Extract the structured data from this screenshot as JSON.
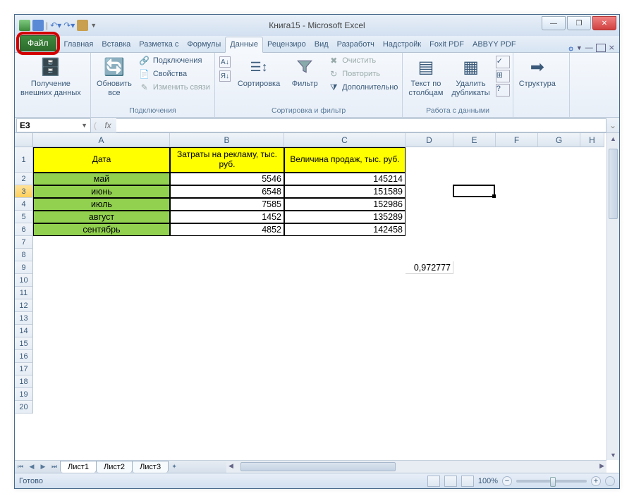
{
  "title": "Книга15 - Microsoft Excel",
  "tabs": {
    "file": "Файл",
    "items": [
      "Главная",
      "Вставка",
      "Разметка с",
      "Формулы",
      "Данные",
      "Рецензиро",
      "Вид",
      "Разработч",
      "Надстройк",
      "Foxit PDF",
      "ABBYY PDF"
    ],
    "active_index": 4
  },
  "ribbon": {
    "g1": {
      "btn": "Получение\nвнешних данных"
    },
    "g2": {
      "btn": "Обновить\nвсе",
      "r1": "Подключения",
      "r2": "Свойства",
      "r3": "Изменить связи",
      "label": "Подключения"
    },
    "g3": {
      "sort": "Сортировка",
      "filter": "Фильтр",
      "c1": "Очистить",
      "c2": "Повторить",
      "c3": "Дополнительно",
      "label": "Сортировка и фильтр"
    },
    "g4": {
      "b1": "Текст по\nстолбцам",
      "b2": "Удалить\nдубликаты",
      "label": "Работа с данными"
    },
    "g5": {
      "btn": "Структура"
    }
  },
  "namebox": "E3",
  "formula": "",
  "grid": {
    "columns": [
      {
        "letter": "A",
        "width": 194
      },
      {
        "letter": "B",
        "width": 162
      },
      {
        "letter": "C",
        "width": 172
      },
      {
        "letter": "D",
        "width": 68
      },
      {
        "letter": "E",
        "width": 60
      },
      {
        "letter": "F",
        "width": 60
      },
      {
        "letter": "G",
        "width": 60
      },
      {
        "letter": "H",
        "width": 34
      }
    ],
    "header_row_height": 36,
    "data_row_height": 18,
    "visible_rows": 20,
    "selected_row": 3,
    "selected_col_idx": 4,
    "headers": [
      "Дата",
      "Затраты на рекламу, тыс. руб.",
      "Величина продаж, тыс. руб."
    ],
    "rows": [
      {
        "a": "май",
        "b": "5546",
        "c": "145214"
      },
      {
        "a": "июнь",
        "b": "6548",
        "c": "151589"
      },
      {
        "a": "июль",
        "b": "7585",
        "c": "152986"
      },
      {
        "a": "август",
        "b": "1452",
        "c": "135289"
      },
      {
        "a": "сентябрь",
        "b": "4852",
        "c": "142458"
      }
    ],
    "extra": {
      "row": 9,
      "col_idx": 3,
      "value": "0,972777"
    },
    "header_bg": "#ffff00",
    "month_bg": "#92d050",
    "border_color": "#000000"
  },
  "sheets": {
    "items": [
      "Лист1",
      "Лист2",
      "Лист3"
    ],
    "active": 0
  },
  "status": {
    "left": "Готово",
    "zoom": "100%"
  },
  "window": {
    "min": "—",
    "max": "❐",
    "close": "✕"
  }
}
